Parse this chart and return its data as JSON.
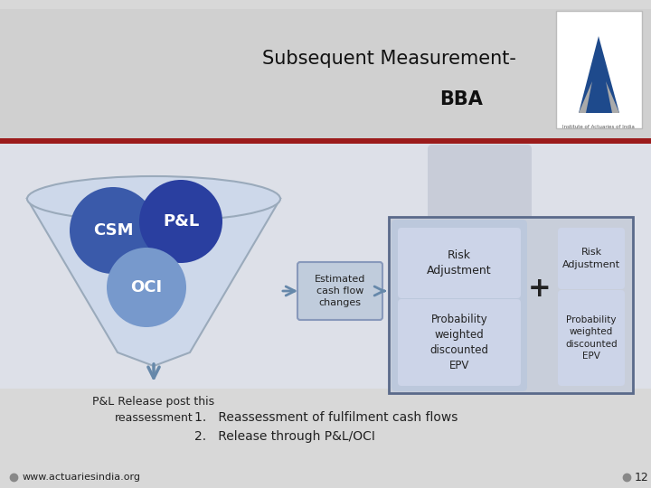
{
  "title_line1": "Subsequent Measurement-",
  "title_line2": "BBA",
  "bg_top": "#d8d8d8",
  "bg_main": "#dde0e8",
  "bg_bottom": "#d8d8d8",
  "red_line_color": "#9b1b1b",
  "csm_color": "#3a5aaa",
  "pl_color": "#2a3fa0",
  "oci_color": "#7799cc",
  "funnel_fill": "#cdd8ea",
  "funnel_outline": "#9aaabb",
  "box_outer_fill": "#c8ceda",
  "box_outer_border": "#5a6a8a",
  "left_col_bg": "#bcc8dc",
  "right_col_bg": "#c8ceda",
  "inner_box_fill": "#ccd4e8",
  "ecf_box_fill": "#c0ccdc",
  "ecf_border": "#8899bb",
  "arrow_color": "#6688aa",
  "text_color": "#222222",
  "gray_dot_color": "#888888",
  "slide_num": "12",
  "label_csm": "CSM",
  "label_pl": "P&L",
  "label_oci": "OCI",
  "label_ecf": "Estimated\ncash flow\nchanges",
  "label_risk_adj": "Risk\nAdjustment",
  "label_prob_weight": "Probability\nweighted\ndiscounted\nEPV",
  "label_pl_release": "P&L Release post this\nreassessment",
  "label_bullet1": "1.   Reassessment of fulfilment cash flows",
  "label_bullet2": "2.   Release through P&L/OCI",
  "label_website": "www.actuariesindia.org"
}
